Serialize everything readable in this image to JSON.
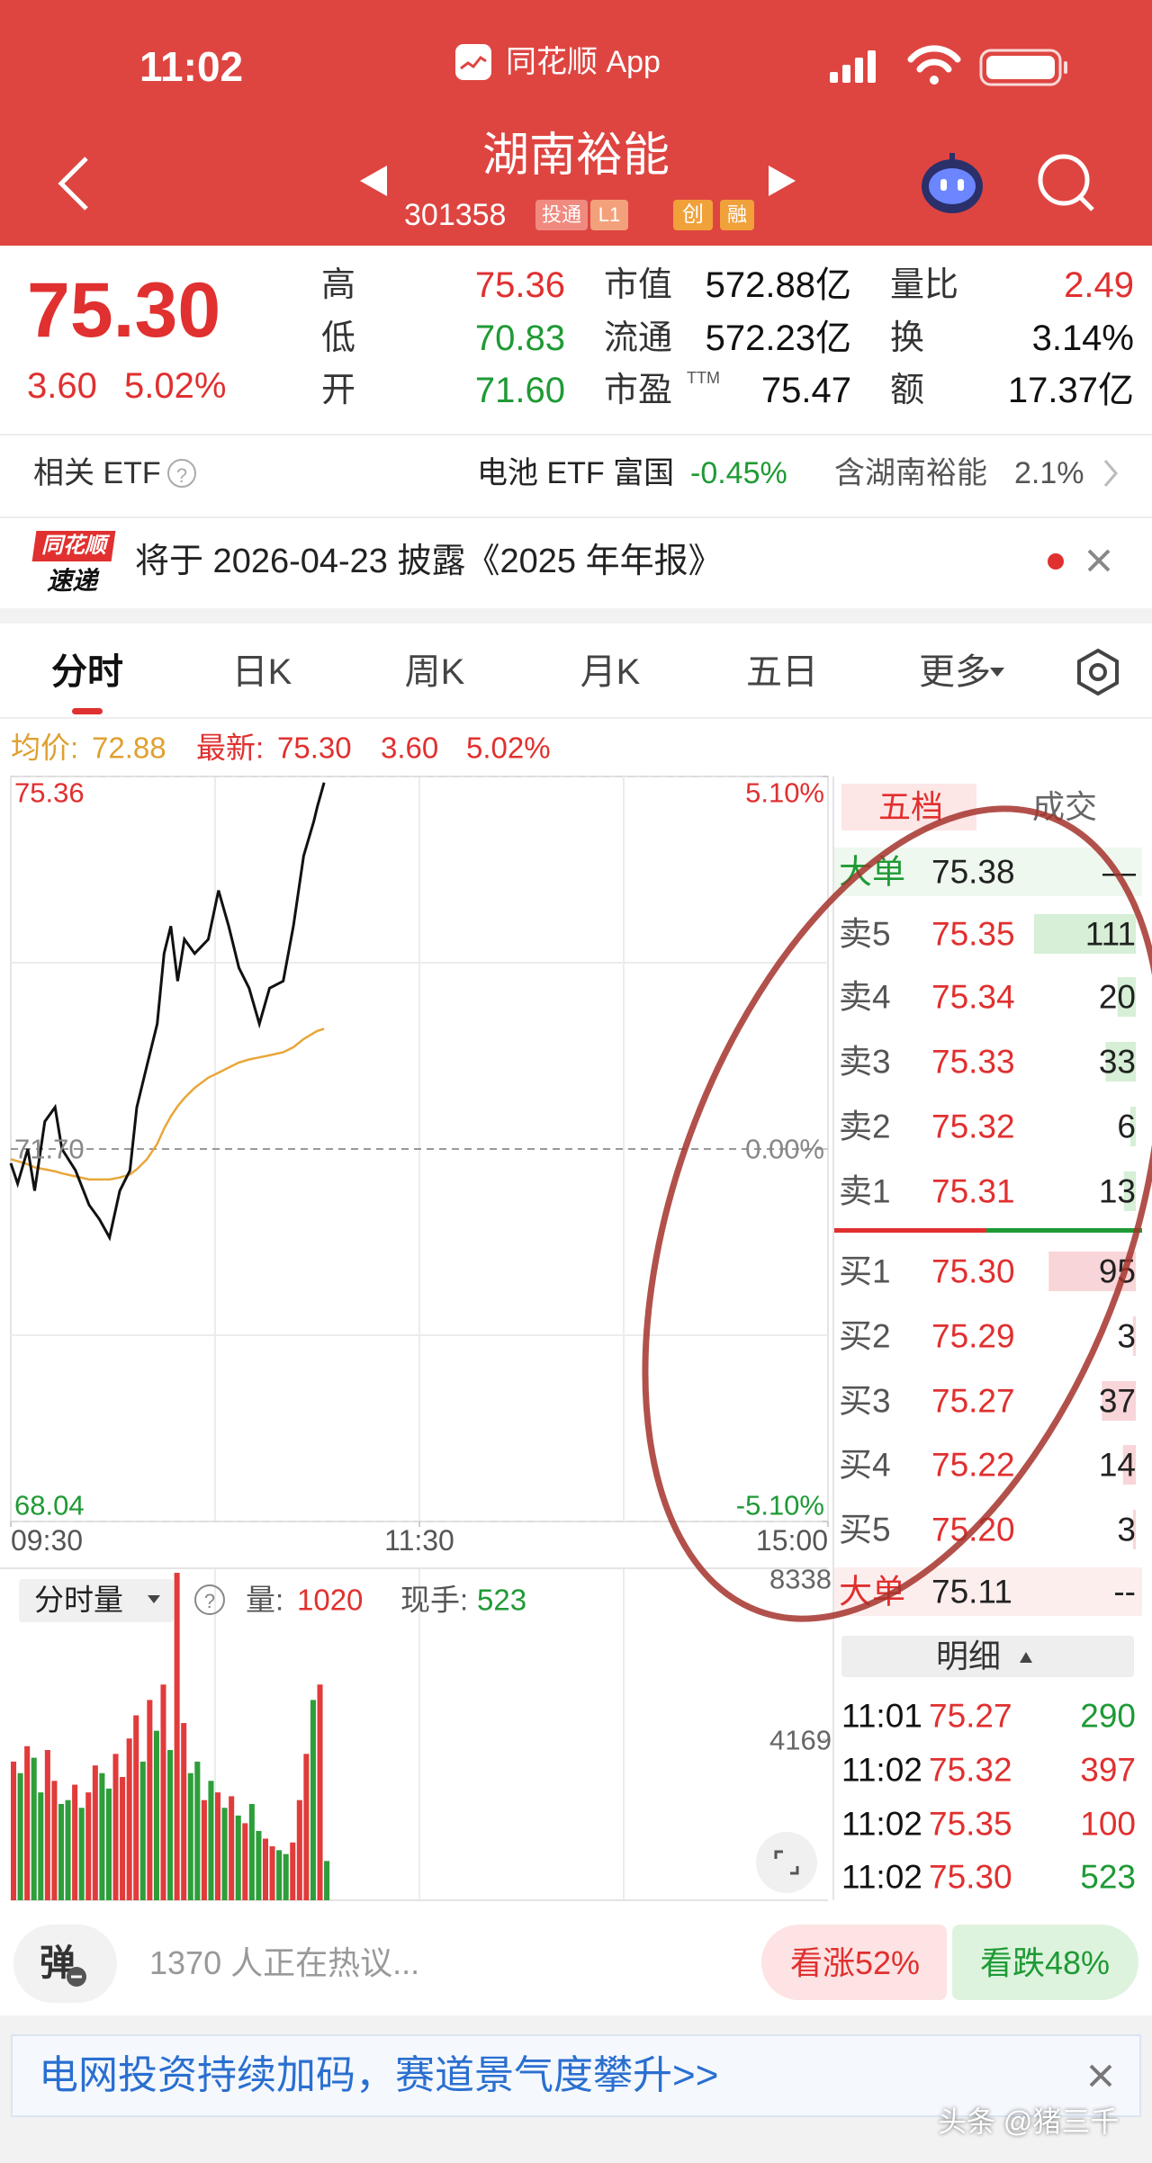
{
  "status_bar": {
    "time": "11:02",
    "app_name": "同花顺 App"
  },
  "header": {
    "name": "湖南裕能",
    "code": "301358",
    "tags": [
      "投通",
      "L1",
      "创",
      "融"
    ]
  },
  "quote": {
    "price": "75.30",
    "change": "3.60",
    "change_pct": "5.02%",
    "stats": [
      [
        {
          "label": "高",
          "value": "75.36",
          "color": "#e0302f"
        },
        {
          "label": "市值",
          "value": "572.88亿",
          "color": "#111111"
        },
        {
          "label": "量比",
          "value": "2.49",
          "color": "#e0302f"
        }
      ],
      [
        {
          "label": "低",
          "value": "70.83",
          "color": "#1f9a35"
        },
        {
          "label": "流通",
          "value": "572.23亿",
          "color": "#111111"
        },
        {
          "label": "换",
          "value": "3.14%",
          "color": "#111111"
        }
      ],
      [
        {
          "label": "开",
          "value": "71.60",
          "color": "#1f9a35"
        },
        {
          "label": "市盈",
          "sup": "TTM",
          "value": "75.47",
          "color": "#111111"
        },
        {
          "label": "额",
          "value": "17.37亿",
          "color": "#111111"
        }
      ]
    ]
  },
  "etf": {
    "label": "相关 ETF",
    "name": "电池 ETF 富国",
    "change": "-0.45%",
    "holding_label": "含湖南裕能",
    "holding": "2.1%"
  },
  "notice": {
    "logo_top": "同花顺",
    "logo_bottom": "速递",
    "text": "将于 2026-04-23 披露《2025 年年报》"
  },
  "tabs": [
    "分时",
    "日K",
    "周K",
    "月K",
    "五日",
    "更多"
  ],
  "chart_info": {
    "avg_label": "均价:",
    "avg": "72.88",
    "last_label": "最新:",
    "last": "75.30",
    "change": "3.60",
    "change_pct": "5.02%"
  },
  "chart_data": [
    {
      "type": "line",
      "x": [
        0,
        2,
        5,
        7,
        10,
        13,
        15,
        19,
        23,
        26,
        29,
        32,
        35,
        37,
        40,
        43,
        45,
        47,
        49,
        51,
        54,
        58,
        61,
        64,
        67,
        70,
        73,
        76,
        80,
        83,
        86,
        89,
        90,
        92
      ],
      "series": [
        {
          "color": "#111111",
          "values": [
            71.56,
            71.36,
            71.7,
            71.29,
            71.97,
            72.11,
            71.7,
            71.49,
            71.15,
            71.01,
            70.83,
            71.29,
            71.49,
            72.11,
            72.52,
            72.93,
            73.62,
            73.89,
            73.35,
            73.76,
            73.62,
            73.76,
            74.24,
            73.89,
            73.48,
            73.28,
            72.93,
            73.28,
            73.35,
            73.89,
            74.58,
            74.92,
            75.06,
            75.3
          ]
        },
        {
          "color": "#e8a73a",
          "values": [
            71.6,
            71.58,
            71.55,
            71.52,
            71.5,
            71.48,
            71.46,
            71.43,
            71.4,
            71.4,
            71.4,
            71.42,
            71.45,
            71.5,
            71.6,
            71.75,
            71.9,
            72.02,
            72.12,
            72.2,
            72.3,
            72.4,
            72.45,
            72.5,
            72.55,
            72.58,
            72.6,
            72.62,
            72.65,
            72.7,
            72.78,
            72.84,
            72.86,
            72.88
          ]
        }
      ],
      "xlim": [
        0,
        240
      ],
      "xticks": [
        {
          "value": 0,
          "label": "09:30"
        },
        {
          "value": 120,
          "label": "11:30"
        },
        {
          "value": 240,
          "label": "15:00"
        }
      ],
      "ylim": [
        68.04,
        75.36
      ],
      "yticks": [
        68.04,
        {
          "value": 71.7,
          "label": "71.70"
        },
        75.36
      ],
      "y2lim": [
        -5.1,
        5.1
      ],
      "y2ticks": [
        {
          "value": 5.1,
          "label": "5.10%"
        },
        {
          "value": 0,
          "label": "0.00%"
        },
        {
          "value": -5.1,
          "label": "-5.10%"
        }
      ],
      "grid": true
    },
    {
      "type": "bar",
      "x": [
        0,
        2,
        4,
        6,
        8,
        10,
        12,
        14,
        16,
        18,
        20,
        22,
        24,
        26,
        28,
        30,
        32,
        34,
        36,
        38,
        40,
        42,
        44,
        46,
        48,
        50,
        52,
        54,
        56,
        58,
        60,
        62,
        64,
        66,
        68,
        70,
        72,
        74,
        76,
        78,
        80,
        82,
        84,
        86,
        88,
        90,
        92
      ],
      "values": [
        3600,
        3300,
        4000,
        3700,
        2800,
        3900,
        3100,
        2500,
        2600,
        3000,
        2400,
        2800,
        3500,
        3300,
        2900,
        3800,
        3200,
        4200,
        4800,
        3600,
        5200,
        4400,
        5600,
        3900,
        8500,
        4600,
        3300,
        3600,
        2600,
        3100,
        2800,
        2400,
        2700,
        2200,
        2000,
        2500,
        1800,
        1600,
        1400,
        1300,
        1200,
        1500,
        2600,
        3800,
        5200,
        5600,
        1020
      ],
      "colors": [
        "#e23b3b",
        "#2e9e3a",
        "#e23b3b",
        "#2e9e3a",
        "#2e9e3a",
        "#e23b3b",
        "#e23b3b",
        "#2e9e3a",
        "#2e9e3a",
        "#e23b3b",
        "#2e9e3a",
        "#e23b3b",
        "#e23b3b",
        "#2e9e3a",
        "#2e9e3a",
        "#e23b3b",
        "#e23b3b",
        "#e23b3b",
        "#e23b3b",
        "#2e9e3a",
        "#e23b3b",
        "#2e9e3a",
        "#e23b3b",
        "#2e9e3a",
        "#e23b3b",
        "#e23b3b",
        "#2e9e3a",
        "#2e9e3a",
        "#e23b3b",
        "#2e9e3a",
        "#e23b3b",
        "#2e9e3a",
        "#e23b3b",
        "#2e9e3a",
        "#e23b3b",
        "#2e9e3a",
        "#2e9e3a",
        "#e23b3b",
        "#e23b3b",
        "#2e9e3a",
        "#2e9e3a",
        "#e23b3b",
        "#e23b3b",
        "#e23b3b",
        "#2e9e3a",
        "#e23b3b",
        "#2e9e3a"
      ],
      "xlim": [
        0,
        240
      ],
      "ylim": [
        0,
        8338
      ],
      "yticks": [
        4169,
        8338
      ]
    }
  ],
  "volume_info": {
    "selector": "分时量",
    "vol_label": "量:",
    "vol": "1020",
    "hand_label": "现手:",
    "hand": "523"
  },
  "order_book": {
    "tabs": [
      "五档",
      "成交"
    ],
    "big_ask": {
      "label": "大单",
      "price": "75.38",
      "qty": "—"
    },
    "asks": [
      {
        "label": "卖5",
        "price": "75.35",
        "qty": 111
      },
      {
        "label": "卖4",
        "price": "75.34",
        "qty": 20
      },
      {
        "label": "卖3",
        "price": "75.33",
        "qty": 33
      },
      {
        "label": "卖2",
        "price": "75.32",
        "qty": 6
      },
      {
        "label": "卖1",
        "price": "75.31",
        "qty": 13
      }
    ],
    "bids": [
      {
        "label": "买1",
        "price": "75.30",
        "qty": 95
      },
      {
        "label": "买2",
        "price": "75.29",
        "qty": 3
      },
      {
        "label": "买3",
        "price": "75.27",
        "qty": 37
      },
      {
        "label": "买4",
        "price": "75.22",
        "qty": 14
      },
      {
        "label": "买5",
        "price": "75.20",
        "qty": 3
      }
    ],
    "big_bid": {
      "label": "大单",
      "price": "75.11",
      "qty": "--"
    }
  },
  "trades": {
    "title": "明细",
    "rows": [
      {
        "time": "11:01",
        "price": "75.27",
        "qty": "290",
        "color": "#1f9a35"
      },
      {
        "time": "11:02",
        "price": "75.32",
        "qty": "397",
        "color": "#e0302f"
      },
      {
        "time": "11:02",
        "price": "75.35",
        "qty": "100",
        "color": "#e0302f"
      },
      {
        "time": "11:02",
        "price": "75.30",
        "qty": "523",
        "color": "#1f9a35"
      }
    ]
  },
  "footer": {
    "danmu": "弹",
    "discussion": "1370 人正在热议...",
    "bullish": "看涨52%",
    "bearish": "看跌48%"
  },
  "banner": {
    "text": "电网投资持续加码，赛道景气度攀升>>"
  },
  "watermark": "头条 @猪三千"
}
